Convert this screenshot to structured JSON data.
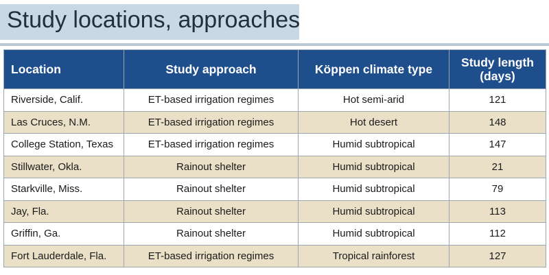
{
  "title": "Study locations, approaches",
  "headers": {
    "location": "Location",
    "approach": "Study approach",
    "climate": "Köppen climate type",
    "length_line1": "Study length",
    "length_line2": "(days)"
  },
  "rows": [
    {
      "location": "Riverside, Calif.",
      "approach": "ET-based irrigation regimes",
      "climate": "Hot semi-arid",
      "length": "121"
    },
    {
      "location": "Las Cruces, N.M.",
      "approach": "ET-based irrigation regimes",
      "climate": "Hot desert",
      "length": "148"
    },
    {
      "location": "College Station, Texas",
      "approach": "ET-based irrigation regimes",
      "climate": "Humid subtropical",
      "length": "147"
    },
    {
      "location": "Stillwater, Okla.",
      "approach": "Rainout shelter",
      "climate": "Humid subtropical",
      "length": "21"
    },
    {
      "location": "Starkville, Miss.",
      "approach": "Rainout shelter",
      "climate": "Humid subtropical",
      "length": "79"
    },
    {
      "location": "Jay, Fla.",
      "approach": "Rainout shelter",
      "climate": "Humid subtropical",
      "length": "113"
    },
    {
      "location": "Griffin, Ga.",
      "approach": "Rainout shelter",
      "climate": "Humid subtropical",
      "length": "112"
    },
    {
      "location": "Fort Lauderdale, Fla.",
      "approach": "ET-based irrigation regimes",
      "climate": "Tropical rainforest",
      "length": "127"
    }
  ],
  "colors": {
    "header_bg": "#1f4e8c",
    "title_bg": "#c8d8e4",
    "alt_row_bg": "#e9e0c7"
  }
}
